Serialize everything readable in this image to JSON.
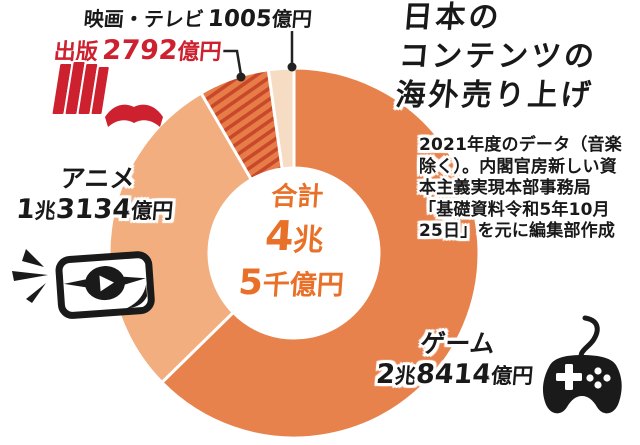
{
  "title": {
    "lines": [
      "日本の",
      "コンテンツの",
      "海外売り上げ"
    ]
  },
  "note": {
    "lines": [
      "2021年度のデータ（音楽",
      "除く）。内閣官房新しい資",
      "本主義実現本部事務局",
      "「基礎資料令和5年10月",
      "25日」を元に編集部作成"
    ]
  },
  "center": {
    "label": "合計",
    "value_lines": [
      "4兆",
      "5千億円"
    ]
  },
  "labels": {
    "movie": {
      "name": "映画・テレビ",
      "value": "1005億円"
    },
    "publishing": {
      "name": "出版",
      "value": "2792億円"
    },
    "anime": {
      "name": "アニメ",
      "value": "1兆3134億円"
    },
    "game": {
      "name": "ゲーム",
      "value": "2兆8414億円"
    }
  },
  "colors": {
    "accent_orange": "#e87028",
    "label_red": "#cd2130",
    "text_black": "#191919",
    "segment_game": "#e8824c",
    "segment_anime": "#f2ae7e",
    "segment_publishing": "#e87c49",
    "segment_publishing_stripe": "#c8482a",
    "segment_movie_tv": "#f6dcc2"
  },
  "chart_data": {
    "type": "pie",
    "title": "日本のコンテンツの海外売り上げ",
    "subtitle": "2021年度のデータ（音楽除く）",
    "source": "内閣官房新しい資本主義実現本部事務局「基礎資料令和5年10月25日」を元に編集部作成",
    "total_label": "合計4兆5千億円",
    "total_value": 45345,
    "unit": "億円",
    "donut": true,
    "hole_ratio": 0.46,
    "start_angle_deg": 0,
    "direction": "clockwise",
    "segments": [
      {
        "id": "game",
        "name": "ゲーム",
        "value": 28414,
        "value_label": "2兆8414億円",
        "color": "#e8824c",
        "pattern": "solid"
      },
      {
        "id": "anime",
        "name": "アニメ",
        "value": 13134,
        "value_label": "1兆3134億円",
        "color": "#f2ae7e",
        "pattern": "solid"
      },
      {
        "id": "publishing",
        "name": "出版",
        "value": 2792,
        "value_label": "2792億円",
        "color": "#e87c49",
        "pattern": "hatch",
        "hatch_color": "#c8482a"
      },
      {
        "id": "movie-tv",
        "name": "映画・テレビ",
        "value": 1005,
        "value_label": "1005億円",
        "color": "#f6dcc2",
        "pattern": "solid"
      }
    ]
  }
}
